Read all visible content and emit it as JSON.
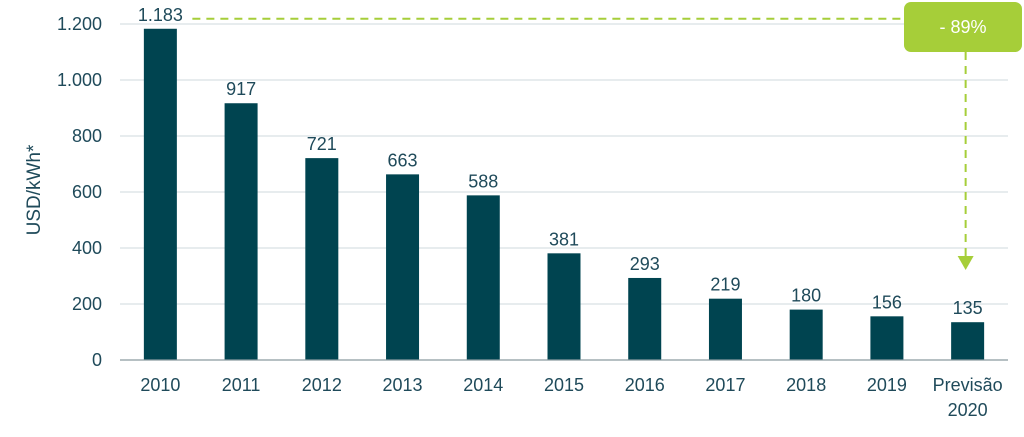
{
  "chart_data": {
    "type": "bar",
    "ylabel": "USD/kWh*",
    "ylim": [
      0,
      1200
    ],
    "yticks": [
      0,
      200,
      400,
      600,
      800,
      1000,
      1200
    ],
    "ytick_labels": [
      "0",
      "200",
      "400",
      "600",
      "800",
      "1.000",
      "1.200"
    ],
    "grid": true,
    "categories": [
      [
        "2010"
      ],
      [
        "2011"
      ],
      [
        "2012"
      ],
      [
        "2013"
      ],
      [
        "2014"
      ],
      [
        "2015"
      ],
      [
        "2016"
      ],
      [
        "2017"
      ],
      [
        "2018"
      ],
      [
        "2019"
      ],
      [
        "Previsão",
        "2020"
      ]
    ],
    "values": [
      1183,
      917,
      721,
      663,
      588,
      381,
      293,
      219,
      180,
      156,
      135
    ],
    "value_labels": [
      "1.183",
      "917",
      "721",
      "663",
      "588",
      "381",
      "293",
      "219",
      "180",
      "156",
      "135"
    ],
    "annotation": {
      "text": "- 89%",
      "from_index": 0,
      "to_index": 10
    },
    "colors": {
      "bar": "#004450",
      "axis_text": "#1f4a5a",
      "grid": "#cfd8dc",
      "accent": "#a6ce39"
    }
  }
}
